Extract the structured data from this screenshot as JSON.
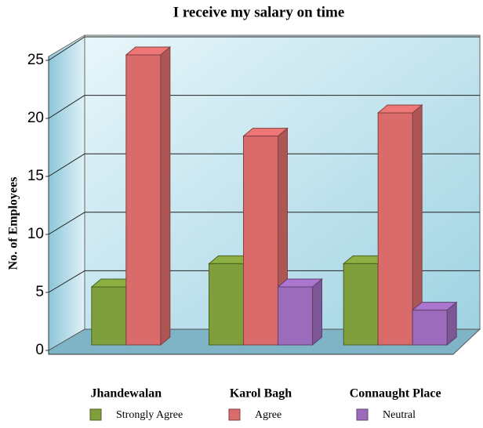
{
  "chart_data": {
    "type": "bar3d",
    "title": "I receive my salary on time",
    "y_label": "No. of Employees",
    "categories": [
      "Jhandewalan",
      "Karol Bagh",
      "Connaught Place"
    ],
    "series": [
      {
        "name": "Strongly Agree",
        "color": "#7f9f3c",
        "values": [
          5,
          7,
          7
        ]
      },
      {
        "name": "Agree",
        "color": "#d96b6b",
        "values": [
          25,
          18,
          20
        ]
      },
      {
        "name": "Neutral",
        "color": "#9c6bbb",
        "values": [
          null,
          5,
          3
        ]
      }
    ],
    "ylim": [
      0,
      25
    ],
    "yticks": [
      0,
      5,
      10,
      15,
      20,
      25
    ],
    "grid": true
  }
}
